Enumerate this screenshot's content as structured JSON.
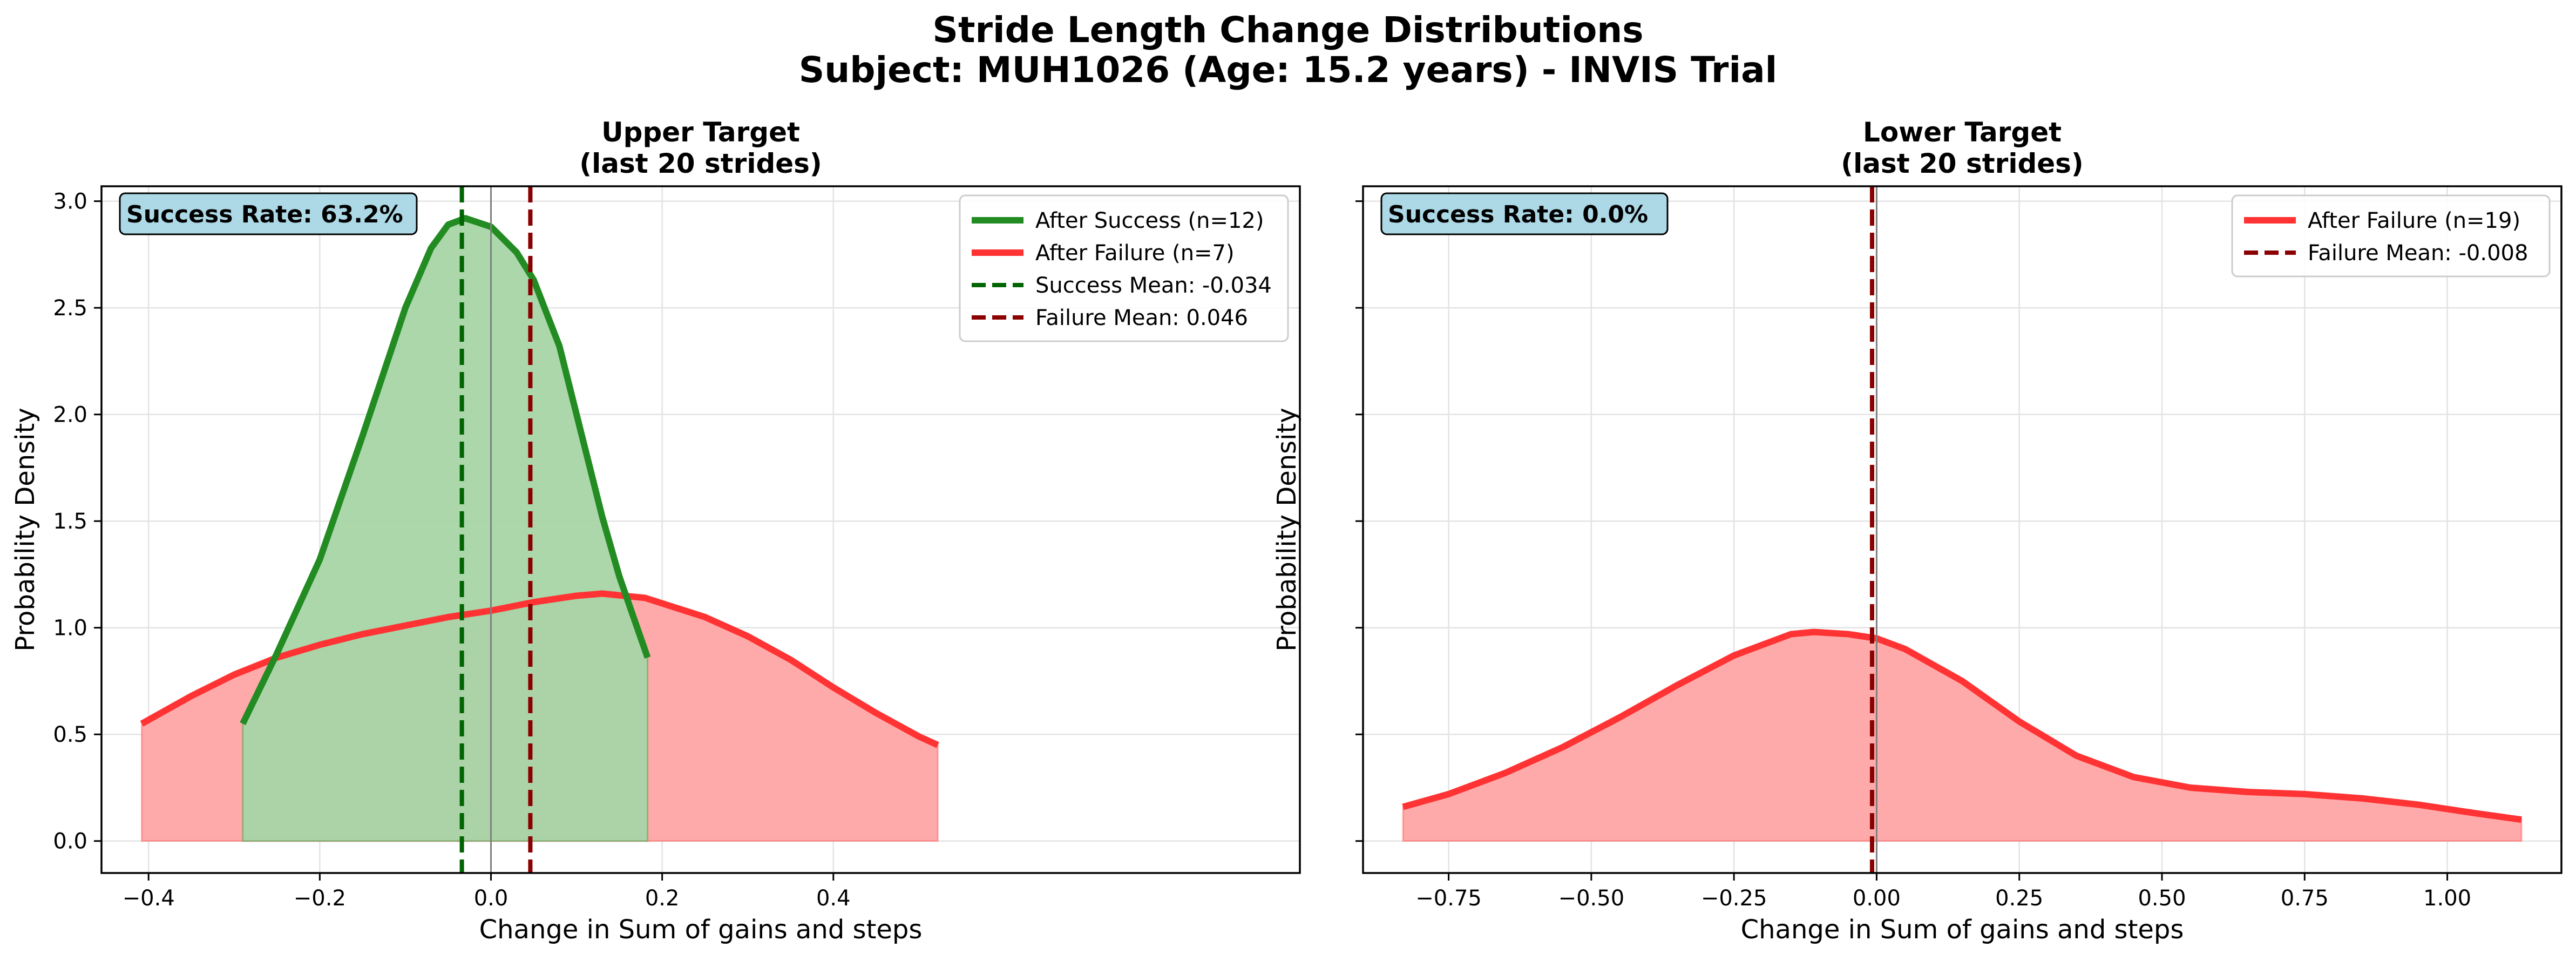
{
  "figure": {
    "title_line1": "Stride Length Change Distributions",
    "title_line2": "Subject: MUH1026 (Age: 15.2 years) - INVIS Trial"
  },
  "chart_data": [
    {
      "type": "area",
      "title_line1": "Upper Target",
      "title_line2": "(last 20 strides)",
      "xlabel": "Change in Sum of gains and steps",
      "ylabel": "Probability Density",
      "xlim": [
        -0.455,
        0.945
      ],
      "ylim": [
        -0.15,
        3.07
      ],
      "xticks": [
        -0.4,
        -0.2,
        0.0,
        0.2,
        0.4
      ],
      "xtick_labels": [
        "−0.4",
        "−0.2",
        "0.0",
        "0.2",
        "0.4"
      ],
      "yticks": [
        0.0,
        0.5,
        1.0,
        1.5,
        2.0,
        2.5,
        3.0
      ],
      "ytick_labels": [
        "0.0",
        "0.5",
        "1.0",
        "1.5",
        "2.0",
        "2.5",
        "3.0"
      ],
      "grid": true,
      "zero_line": true,
      "legend_position": "top-right",
      "annotation": "Success Rate: 63.2%",
      "series": [
        {
          "name": "After Failure (n=7)",
          "color": "#ff3333",
          "fill": "#ffa5a5",
          "x": [
            -0.408,
            -0.35,
            -0.3,
            -0.25,
            -0.2,
            -0.15,
            -0.1,
            -0.05,
            0.0,
            0.05,
            0.1,
            0.13,
            0.18,
            0.25,
            0.3,
            0.35,
            0.4,
            0.45,
            0.5,
            0.522
          ],
          "y": [
            0.55,
            0.68,
            0.78,
            0.86,
            0.92,
            0.97,
            1.01,
            1.05,
            1.08,
            1.12,
            1.15,
            1.16,
            1.14,
            1.05,
            0.96,
            0.85,
            0.72,
            0.6,
            0.49,
            0.45
          ]
        },
        {
          "name": "After Success (n=12)",
          "color": "#228b22",
          "fill": "#a6d5a6",
          "x": [
            -0.29,
            -0.25,
            -0.2,
            -0.15,
            -0.1,
            -0.07,
            -0.05,
            -0.03,
            0.0,
            0.03,
            0.05,
            0.08,
            0.1,
            0.13,
            0.15,
            0.183
          ],
          "y": [
            0.55,
            0.88,
            1.32,
            1.9,
            2.5,
            2.78,
            2.89,
            2.92,
            2.88,
            2.76,
            2.63,
            2.32,
            2.0,
            1.52,
            1.24,
            0.86
          ]
        }
      ],
      "vlines": [
        {
          "name": "Success Mean: -0.034",
          "x": -0.034,
          "color": "#006400"
        },
        {
          "name": "Failure Mean: 0.046",
          "x": 0.046,
          "color": "#8b0000"
        }
      ],
      "legend": [
        {
          "label": "After Success (n=12)",
          "style": "solid",
          "color": "#228b22"
        },
        {
          "label": "After Failure (n=7)",
          "style": "solid",
          "color": "#ff3333"
        },
        {
          "label": "Success Mean: -0.034",
          "style": "dashed",
          "color": "#006400"
        },
        {
          "label": "Failure Mean: 0.046",
          "style": "dashed",
          "color": "#8b0000"
        }
      ]
    },
    {
      "type": "area",
      "title_line1": "Lower Target",
      "title_line2": "(last 20 strides)",
      "xlabel": "Change in Sum of gains and steps",
      "ylabel": "Probability Density",
      "xlim": [
        -0.9,
        1.2
      ],
      "ylim": [
        -0.15,
        3.07
      ],
      "xticks": [
        -0.75,
        -0.5,
        -0.25,
        0.0,
        0.25,
        0.5,
        0.75,
        1.0
      ],
      "xtick_labels": [
        "−0.75",
        "−0.50",
        "−0.25",
        "0.00",
        "0.25",
        "0.50",
        "0.75",
        "1.00"
      ],
      "yticks": [
        0.0,
        0.5,
        1.0,
        1.5,
        2.0,
        2.5,
        3.0
      ],
      "ytick_labels": [],
      "grid": true,
      "zero_line": true,
      "legend_position": "top-right",
      "annotation": "Success Rate: 0.0%",
      "series": [
        {
          "name": "After Failure (n=19)",
          "color": "#ff3333",
          "fill": "#ffa5a5",
          "x": [
            -0.83,
            -0.75,
            -0.65,
            -0.55,
            -0.45,
            -0.35,
            -0.25,
            -0.15,
            -0.11,
            -0.05,
            0.0,
            0.05,
            0.15,
            0.25,
            0.35,
            0.45,
            0.55,
            0.65,
            0.75,
            0.85,
            0.95,
            1.05,
            1.13
          ],
          "y": [
            0.16,
            0.22,
            0.32,
            0.44,
            0.58,
            0.73,
            0.87,
            0.97,
            0.98,
            0.97,
            0.95,
            0.9,
            0.75,
            0.56,
            0.4,
            0.3,
            0.25,
            0.23,
            0.22,
            0.2,
            0.17,
            0.13,
            0.1
          ]
        }
      ],
      "vlines": [
        {
          "name": "Failure Mean: -0.008",
          "x": -0.008,
          "color": "#8b0000"
        }
      ],
      "legend": [
        {
          "label": "After Failure (n=19)",
          "style": "solid",
          "color": "#ff3333"
        },
        {
          "label": "Failure Mean: -0.008",
          "style": "dashed",
          "color": "#8b0000"
        }
      ]
    }
  ]
}
